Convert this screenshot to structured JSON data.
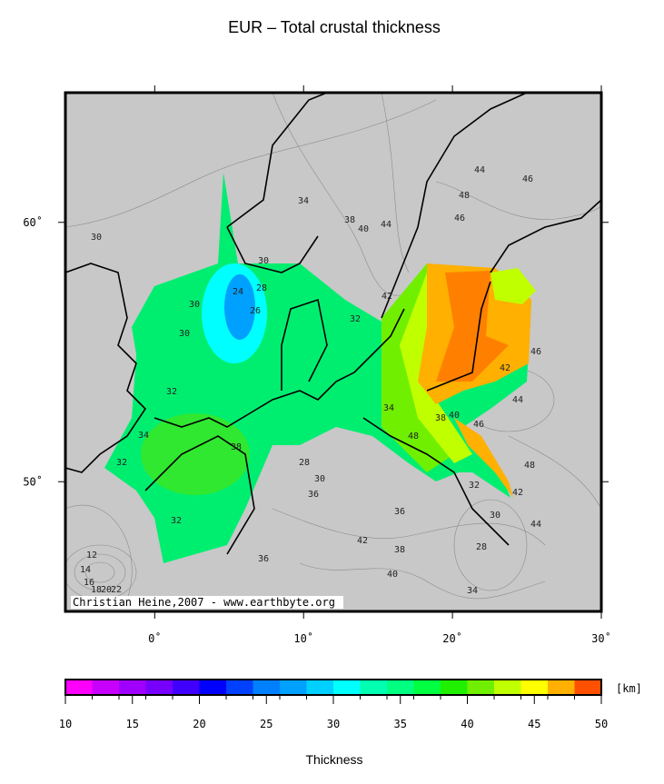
{
  "title": "EUR – Total crustal thickness",
  "map": {
    "lonlim": [
      -6,
      30
    ],
    "latlim": [
      45,
      65
    ],
    "lon_ticks": [
      {
        "value": 0,
        "label": "0˚"
      },
      {
        "value": 10,
        "label": "10˚"
      },
      {
        "value": 20,
        "label": "20˚"
      },
      {
        "value": 30,
        "label": "30˚"
      }
    ],
    "lat_ticks": [
      {
        "value": 60,
        "label": "60˚"
      },
      {
        "value": 50,
        "label": "50˚"
      }
    ],
    "contour_labels": [
      "30",
      "34",
      "32",
      "30",
      "24",
      "26",
      "28",
      "30",
      "30",
      "38",
      "40",
      "44",
      "46",
      "48",
      "48",
      "46",
      "42",
      "32",
      "32",
      "34",
      "38",
      "40",
      "44",
      "46",
      "42",
      "44",
      "46",
      "48",
      "42",
      "34",
      "36",
      "38",
      "28",
      "30",
      "32",
      "36",
      "36",
      "42",
      "38",
      "40",
      "30",
      "28",
      "34",
      "44",
      "32",
      "12",
      "14",
      "16",
      "18",
      "20",
      "22"
    ],
    "credit": "Christian Heine,2007 - www.earthbyte.org"
  },
  "colorbar": {
    "xlim": [
      10,
      50
    ],
    "xticks": [
      10,
      15,
      20,
      25,
      30,
      35,
      40,
      45,
      50
    ],
    "colors": [
      "#ff00ff",
      "#c800ff",
      "#a000ff",
      "#7800ff",
      "#4000ff",
      "#0000ff",
      "#0040ff",
      "#0080ff",
      "#00a0ff",
      "#00d0ff",
      "#00ffff",
      "#00ffb0",
      "#00ff80",
      "#00ff40",
      "#20f000",
      "#70f000",
      "#c0ff00",
      "#ffff00",
      "#ffb000",
      "#ff5000"
    ],
    "unit": "[km]",
    "label": "Thickness"
  }
}
